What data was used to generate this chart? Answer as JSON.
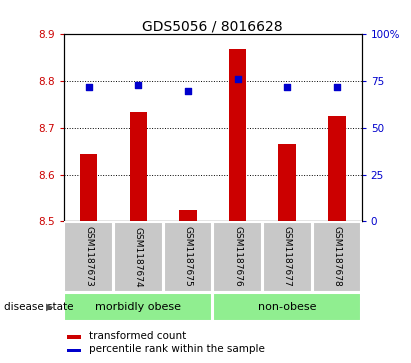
{
  "title": "GDS5056 / 8016628",
  "categories": [
    "GSM1187673",
    "GSM1187674",
    "GSM1187675",
    "GSM1187676",
    "GSM1187677",
    "GSM1187678"
  ],
  "bar_values": [
    8.645,
    8.735,
    8.525,
    8.87,
    8.665,
    8.725
  ],
  "bar_bottom": 8.5,
  "percentile_values": [
    72,
    73,
    70,
    76,
    72,
    72
  ],
  "percentile_scale_min": 0,
  "percentile_scale_max": 100,
  "ylim": [
    8.5,
    8.9
  ],
  "yticks": [
    8.5,
    8.6,
    8.7,
    8.8,
    8.9
  ],
  "right_yticks": [
    0,
    25,
    50,
    75,
    100
  ],
  "right_yticklabels": [
    "0",
    "25",
    "50",
    "75",
    "100%"
  ],
  "bar_color": "#cc0000",
  "dot_color": "#0000cc",
  "grid_color": "#000000",
  "group1_label": "morbidly obese",
  "group2_label": "non-obese",
  "group1_indices": [
    0,
    1,
    2
  ],
  "group2_indices": [
    3,
    4,
    5
  ],
  "group_bg_color": "#90ee90",
  "label_bg_color": "#c8c8c8",
  "disease_state_label": "disease state",
  "legend_bar_label": "transformed count",
  "legend_dot_label": "percentile rank within the sample",
  "title_fontsize": 10,
  "tick_fontsize": 7.5,
  "cat_fontsize": 6.5,
  "group_fontsize": 8,
  "legend_fontsize": 7.5,
  "disease_fontsize": 7.5
}
